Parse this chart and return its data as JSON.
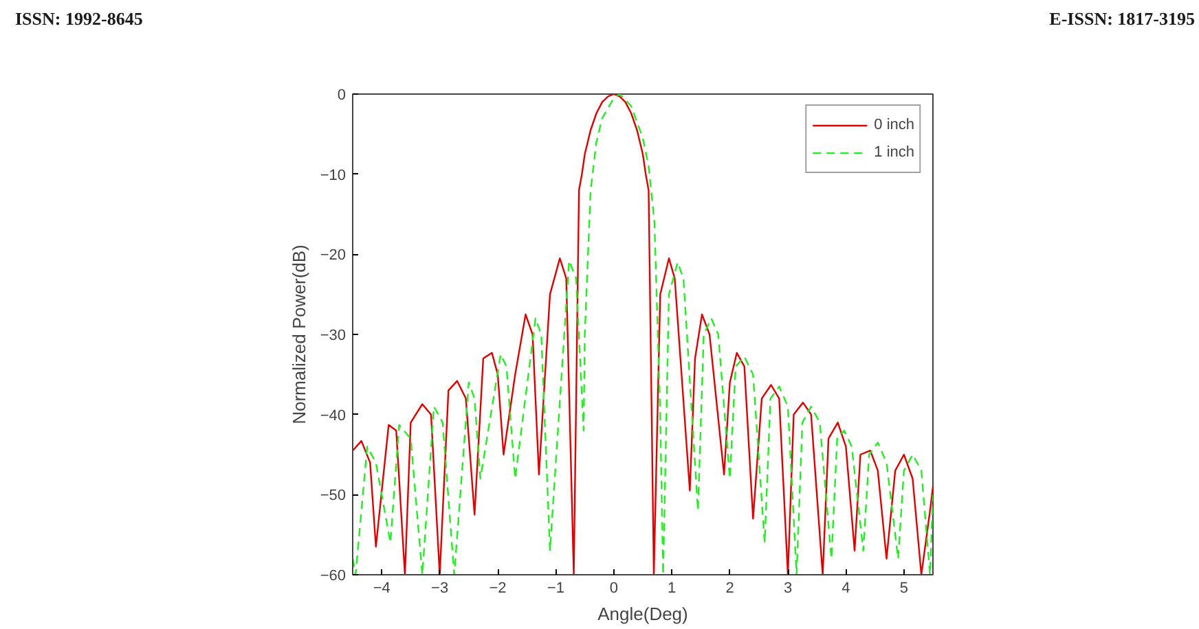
{
  "chart_data": {
    "type": "line",
    "xlabel": "Angle(Deg)",
    "ylabel": "Normalized Power(dB)",
    "annotations": [
      "ISSN: 1992-8645",
      "E-ISSN: 1817-3195"
    ],
    "xlim": [
      -4.5,
      5.5
    ],
    "ylim": [
      -60,
      0
    ],
    "xticks": [
      -4,
      -3,
      -2,
      -1,
      0,
      1,
      2,
      3,
      4,
      5
    ],
    "yticks": [
      -60,
      -50,
      -40,
      -30,
      -20,
      -10,
      0
    ],
    "grid": false,
    "legend": "top right",
    "marker": "none",
    "series": [
      {
        "name": "0 inch",
        "color": "#e00000",
        "line_style": "solid",
        "x": [
          -4.5,
          -4.35,
          -4.2,
          -4.1,
          -3.88,
          -3.75,
          -3.6,
          -3.5,
          -3.3,
          -3.15,
          -3.0,
          -2.85,
          -2.7,
          -2.55,
          -2.4,
          -2.25,
          -2.1,
          -2.0,
          -1.9,
          -1.7,
          -1.52,
          -1.4,
          -1.29,
          -1.1,
          -0.93,
          -0.82,
          -0.69,
          -0.6,
          -0.55,
          -0.5,
          -0.4,
          -0.3,
          -0.2,
          -0.1,
          0,
          0.1,
          0.2,
          0.3,
          0.4,
          0.5,
          0.55,
          0.6,
          0.69,
          0.8,
          0.95,
          1.05,
          1.31,
          1.4,
          1.52,
          1.65,
          1.9,
          2.0,
          2.12,
          2.25,
          2.4,
          2.55,
          2.71,
          2.85,
          3.0,
          3.1,
          3.26,
          3.4,
          3.6,
          3.7,
          3.86,
          4.0,
          4.15,
          4.25,
          4.42,
          4.55,
          4.7,
          4.85,
          5.0,
          5.15,
          5.3,
          5.45,
          5.5
        ],
        "values": [
          -44.5,
          -43.3,
          -46,
          -56.5,
          -41.3,
          -42,
          -60,
          -41,
          -38.7,
          -40,
          -60,
          -37,
          -35.8,
          -38,
          -52.5,
          -33,
          -32.3,
          -35,
          -45,
          -35,
          -27.5,
          -30,
          -47.5,
          -25,
          -20.5,
          -23,
          -60,
          -12,
          -10,
          -7.5,
          -4.5,
          -2.4,
          -1,
          -0.3,
          0,
          -0.3,
          -1,
          -2.4,
          -4.5,
          -7.5,
          -10,
          -12,
          -60,
          -25,
          -20.5,
          -23,
          -49.5,
          -33,
          -27.5,
          -30,
          -47.5,
          -36,
          -32.3,
          -34,
          -53,
          -38,
          -36.3,
          -38,
          -60,
          -40,
          -38.5,
          -40,
          -60,
          -43,
          -41,
          -44,
          -57,
          -45,
          -44.5,
          -47,
          -58,
          -47,
          -45,
          -48,
          -60,
          -52,
          -49
        ]
      },
      {
        "name": "1 inch",
        "color": "#22ee22",
        "line_style": "dashed",
        "x": [
          -4.5,
          -4.45,
          -4.25,
          -4.1,
          -3.85,
          -3.7,
          -3.5,
          -3.3,
          -3.1,
          -2.95,
          -2.75,
          -2.5,
          -2.4,
          -2.3,
          -1.95,
          -1.85,
          -1.7,
          -1.35,
          -1.25,
          -1.1,
          -0.77,
          -0.65,
          -0.52,
          -0.5,
          -0.4,
          -0.3,
          -0.2,
          0,
          0.1,
          0.3,
          0.5,
          0.6,
          0.7,
          0.8,
          0.85,
          0.95,
          1.1,
          1.2,
          1.45,
          1.55,
          1.68,
          1.8,
          2.0,
          2.1,
          2.25,
          2.4,
          2.6,
          2.7,
          2.85,
          3.0,
          3.15,
          3.25,
          3.4,
          3.55,
          3.75,
          3.85,
          3.97,
          4.1,
          4.3,
          4.4,
          4.55,
          4.7,
          4.9,
          5.0,
          5.15,
          5.3,
          5.45,
          5.5
        ],
        "values": [
          -58,
          -60,
          -44,
          -46,
          -56,
          -41.3,
          -43,
          -60,
          -39,
          -41,
          -60,
          -36,
          -38,
          -48,
          -32.5,
          -34,
          -48,
          -28,
          -30,
          -57,
          -20.8,
          -23,
          -42,
          -30,
          -12,
          -6,
          -3,
          -0.5,
          0,
          -1.5,
          -5.5,
          -9,
          -16,
          -40,
          -60,
          -25,
          -21,
          -23,
          -52,
          -30,
          -28,
          -30,
          -48,
          -34,
          -32.8,
          -35,
          -56,
          -38,
          -36.5,
          -39,
          -60,
          -41,
          -39,
          -41,
          -58,
          -43,
          -42,
          -44,
          -57,
          -45,
          -43.5,
          -46,
          -58,
          -47,
          -45,
          -47,
          -60,
          -50
        ]
      }
    ]
  }
}
